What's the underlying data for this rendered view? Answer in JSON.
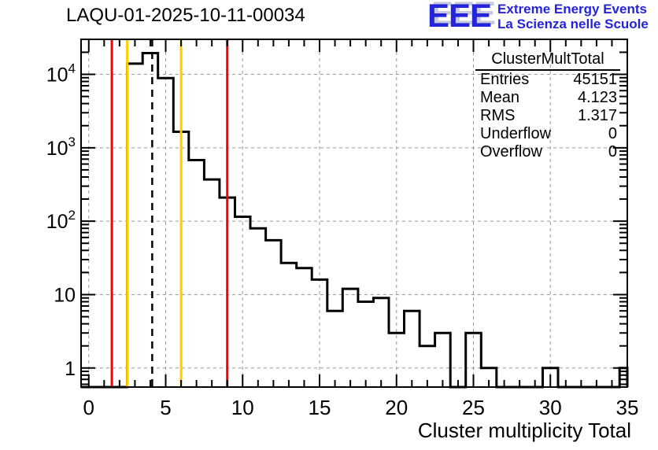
{
  "title": "LAQU-01-2025-10-11-00034",
  "logo": {
    "text": "EEE",
    "line1": "Extreme Energy Events",
    "line2": "La Scienza nelle Scuole",
    "color": "#2424d8"
  },
  "stats": {
    "title": "ClusterMultTotal",
    "rows": [
      {
        "label": "Entries",
        "value": "45151"
      },
      {
        "label": "Mean",
        "value": "4.123"
      },
      {
        "label": "RMS",
        "value": "1.317"
      },
      {
        "label": "Underflow",
        "value": "0"
      },
      {
        "label": "Overflow",
        "value": "0"
      }
    ]
  },
  "chart_data": {
    "type": "bar",
    "title": "LAQU-01-2025-10-11-00034",
    "xlabel": "Cluster multiplicity Total",
    "ylabel": "",
    "yscale": "log",
    "xlim": [
      -0.5,
      35
    ],
    "ylim": [
      0.55,
      30000
    ],
    "grid": true,
    "bin_width": 1,
    "bin_centers": [
      0,
      1,
      2,
      3,
      4,
      5,
      6,
      7,
      8,
      9,
      10,
      11,
      12,
      13,
      14,
      15,
      16,
      17,
      18,
      19,
      20,
      21,
      22,
      23,
      24,
      25,
      26,
      27,
      28,
      29,
      30,
      31,
      32,
      33,
      34,
      35
    ],
    "values": [
      0,
      0,
      0,
      14000,
      19500,
      8900,
      1650,
      680,
      370,
      210,
      115,
      80,
      55,
      27,
      23,
      16,
      6,
      12,
      8,
      9,
      3,
      6,
      2,
      3,
      0,
      3,
      1,
      0,
      0,
      0,
      1,
      0,
      0,
      0,
      0,
      1
    ],
    "x_ticks": [
      0,
      5,
      10,
      15,
      20,
      25,
      30,
      35
    ],
    "y_ticks": [
      {
        "v": 1,
        "base": "1",
        "exp": ""
      },
      {
        "v": 10,
        "base": "10",
        "exp": ""
      },
      {
        "v": 100,
        "base": "10",
        "exp": "2"
      },
      {
        "v": 1000,
        "base": "10",
        "exp": "3"
      },
      {
        "v": 10000,
        "base": "10",
        "exp": "4"
      }
    ],
    "marker_lines": [
      {
        "x": 1.5,
        "color": "#ff0000",
        "style": "solid",
        "name": "alarm-line-low"
      },
      {
        "x": 2.5,
        "color": "#ffcc00",
        "style": "solid",
        "name": "warning-line-low"
      },
      {
        "x": 4.123,
        "color": "#000000",
        "style": "dashed",
        "name": "mean-line"
      },
      {
        "x": 6.0,
        "color": "#ffcc00",
        "style": "solid",
        "name": "warning-line-high"
      },
      {
        "x": 9.0,
        "color": "#ff0000",
        "style": "solid",
        "name": "alarm-line-high"
      }
    ],
    "grid_color": "#999999",
    "hist_color": "#000000"
  }
}
